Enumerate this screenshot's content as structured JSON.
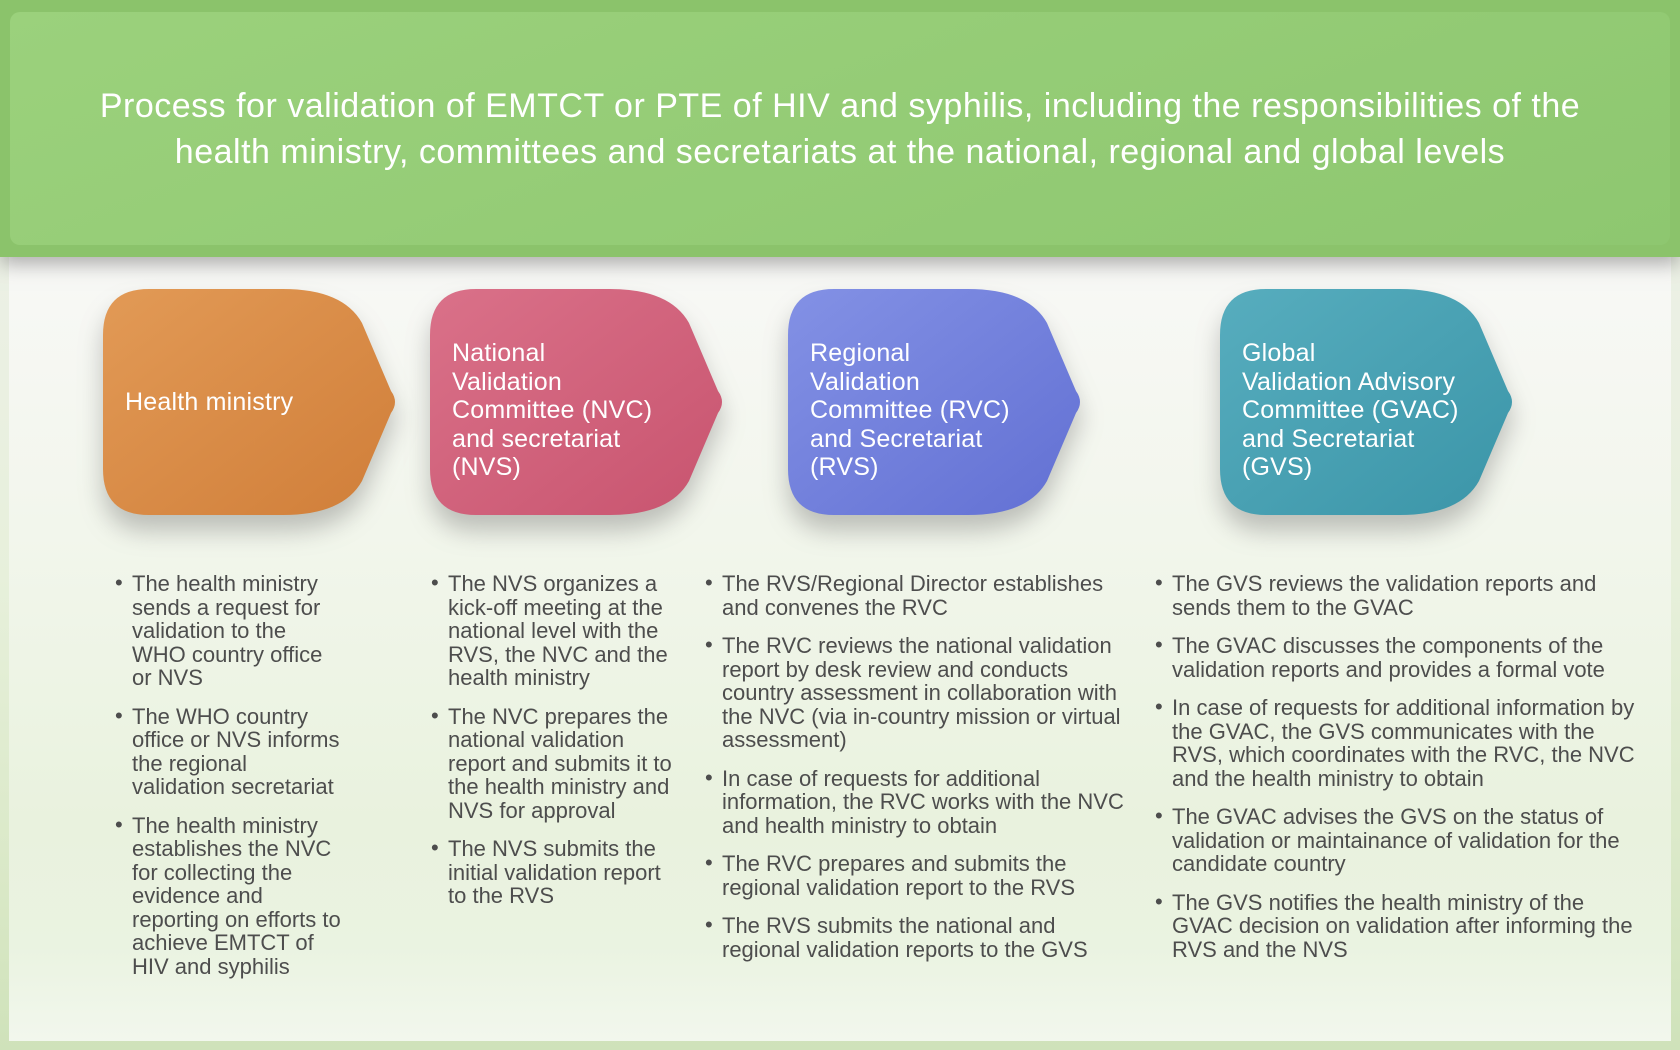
{
  "header": {
    "title": "Process for validation of EMTCT or PTE of HIV and syphilis, including the responsibilities of the health ministry, committees and secretariats at the national, regional and global levels"
  },
  "colors": {
    "header_band": "#8bc36b",
    "header_panel_light": "#9bd17c",
    "header_panel_dark": "#8ec770",
    "title_text": "#ffffff",
    "body_text": "#4d4d4d",
    "frame_green": "#cfe2ba"
  },
  "stages": [
    {
      "id": "health-ministry",
      "label": "Health ministry",
      "color": "#dd8c47",
      "color_light": "#e29a56",
      "color_dark": "#d07e39",
      "bullets": [
        "The health ministry sends a request for validation to the WHO country office or NVS",
        "The WHO country office or NVS informs the regional validation secretariat",
        "The health ministry establishes the NVC for collecting the evidence and reporting on efforts to achieve EMTCT of HIV and syphilis"
      ]
    },
    {
      "id": "national-validation-committee",
      "label": "National\nValidation\nCommittee (NVC)\nand secretariat\n(NVS)",
      "color": "#d4607a",
      "color_light": "#da7189",
      "color_dark": "#c8546f",
      "bullets": [
        "The NVS organizes a kick-off meeting at the national level with the RVS, the NVC and the health ministry",
        "The NVC prepares the national validation report and submits it to the health ministry and NVS for approval",
        "The NVS submits the initial validation report to the RVS"
      ]
    },
    {
      "id": "regional-validation-committee",
      "label": "Regional\nValidation\nCommittee (RVC)\nand Secretariat\n(RVS)",
      "color": "#7280dd",
      "color_light": "#8391e5",
      "color_dark": "#6270d3",
      "bullets": [
        "The RVS/Regional Director establishes and convenes the RVC",
        "The RVC reviews the national validation report by desk review and conducts country assessment in collaboration with the NVC (via in-country mission or virtual assessment)",
        "In case of requests for additional information, the RVC works with the NVC and health ministry to obtain",
        "The RVC prepares and submits the regional validation report to the RVS",
        "The RVS submits the national and regional validation reports to the GVS"
      ]
    },
    {
      "id": "global-validation-advisory-committee",
      "label": "Global\nValidation Advisory\nCommittee (GVAC)\nand Secretariat\n(GVS)",
      "color": "#47a2b4",
      "color_light": "#57adbe",
      "color_dark": "#3b95a8",
      "bullets": [
        "The GVS reviews the validation reports and sends them to the GVAC",
        "The GVAC discusses the components of the validation reports and provides a formal vote",
        "In case of requests for additional information by the GVAC, the GVS communicates with the RVS, which coordinates with the RVC, the NVC and the health ministry to obtain",
        "The GVAC advises the GVS on the status of validation or maintainance of validation for the candidate country",
        "The GVS notifies the health ministry of the GVAC decision on validation after informing the RVS and the NVS"
      ]
    }
  ]
}
